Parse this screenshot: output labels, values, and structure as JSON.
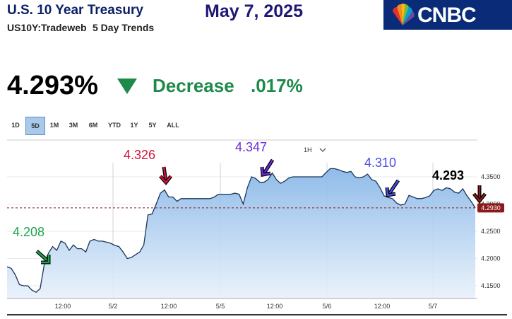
{
  "header": {
    "title": "U.S. 10 Year Treasury",
    "ticker": "US10Y:Tradeweb",
    "trends": "5 Day Trends",
    "date": "May 7, 2025",
    "logo_text": "CNBC"
  },
  "quote": {
    "value": "4.293%",
    "direction": "down",
    "change_label": "Decrease",
    "change_value": ".017%",
    "direction_color": "#1e8a4a"
  },
  "ranges": {
    "items": [
      "1D",
      "5D",
      "1M",
      "3M",
      "6M",
      "YTD",
      "1Y",
      "5Y",
      "ALL"
    ],
    "selected": "5D"
  },
  "chart_controls": {
    "interval": "1H"
  },
  "chart_data": {
    "type": "area",
    "x_tick_labels": [
      "12:00",
      "5/2",
      "12:00",
      "5/5",
      "12:00",
      "5/6",
      "12:00",
      "5/7"
    ],
    "y_tick_labels": [
      "4.3500",
      "4.3000",
      "4.2500",
      "4.2000",
      "4.1500"
    ],
    "ylim": [
      4.13,
      4.38
    ],
    "current_price_label": "4.2930",
    "current_price": 4.293,
    "series": [
      {
        "values": [
          4.185,
          4.182,
          4.17,
          4.152,
          4.15,
          4.15,
          4.142,
          4.138,
          4.145,
          4.19,
          4.21,
          4.222,
          4.215,
          4.232,
          4.228,
          4.215,
          4.225,
          4.218,
          4.218,
          4.212,
          4.232,
          4.235,
          4.232,
          4.232,
          4.23,
          4.228,
          4.224,
          4.222,
          4.212,
          4.2,
          4.202,
          4.207,
          4.212,
          4.225,
          4.28,
          4.282,
          4.3,
          4.32,
          4.326,
          4.313,
          4.313,
          4.305,
          4.31,
          4.31,
          4.31,
          4.31,
          4.31,
          4.31,
          4.31,
          4.31,
          4.313,
          4.318,
          4.318,
          4.318,
          4.318,
          4.32,
          4.318,
          4.3,
          4.33,
          4.35,
          4.347,
          4.34,
          4.34,
          4.345,
          4.357,
          4.345,
          4.338,
          4.342,
          4.348,
          4.35,
          4.35,
          4.35,
          4.35,
          4.35,
          4.35,
          4.35,
          4.35,
          4.358,
          4.365,
          4.365,
          4.363,
          4.36,
          4.358,
          4.36,
          4.35,
          4.348,
          4.35,
          4.355,
          4.345,
          4.342,
          4.33,
          4.315,
          4.312,
          4.31,
          4.302,
          4.298,
          4.3,
          4.316,
          4.313,
          4.31,
          4.31,
          4.312,
          4.315,
          4.325,
          4.328,
          4.325,
          4.33,
          4.328,
          4.322,
          4.32,
          4.328,
          4.315,
          4.305,
          4.293
        ]
      }
    ],
    "annotations": [
      {
        "text": "4.208",
        "color": "#1ea64f"
      },
      {
        "text": "4.326",
        "color": "#d0163e"
      },
      {
        "text": "4.347",
        "color": "#6c2bd9"
      },
      {
        "text": "4.310",
        "color": "#4a4ee0"
      },
      {
        "text": "4.293",
        "color": "#000000"
      }
    ]
  }
}
